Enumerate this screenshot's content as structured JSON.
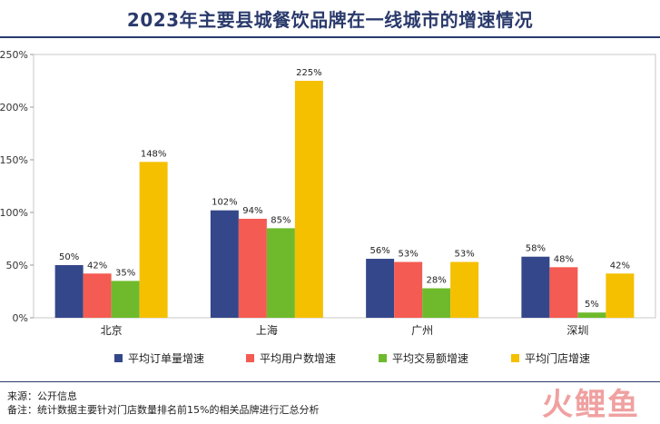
{
  "chart_data": {
    "type": "bar",
    "title": "2023年主要县城餐饮品牌在一线城市的增速情况",
    "categories": [
      "北京",
      "上海",
      "广州",
      "深圳"
    ],
    "series": [
      {
        "name": "平均订单量增速",
        "color": "#34478a",
        "values": [
          50,
          102,
          56,
          58
        ],
        "labels": [
          "50%",
          "102%",
          "56%",
          "58%"
        ]
      },
      {
        "name": "平均用户数增速",
        "color": "#f45b52",
        "values": [
          42,
          94,
          53,
          48
        ],
        "labels": [
          "42%",
          "94%",
          "53%",
          "48%"
        ]
      },
      {
        "name": "平均交易额增速",
        "color": "#6fba2c",
        "values": [
          35,
          85,
          28,
          5
        ],
        "labels": [
          "35%",
          "85%",
          "28%",
          "5%"
        ]
      },
      {
        "name": "平均门店增速",
        "color": "#f5c000",
        "values": [
          148,
          225,
          53,
          42
        ],
        "labels": [
          "148%",
          "225%",
          "53%",
          "42%"
        ]
      }
    ],
    "yticks": [
      "0%",
      "50%",
      "100%",
      "150%",
      "200%",
      "250%"
    ],
    "ylim": [
      0,
      250
    ],
    "grid": false,
    "legend": "bottom"
  },
  "footer": {
    "source": "来源：公开信息",
    "note": "备注：统计数据主要针对门店数量排名前15%的相关品牌进行汇总分析"
  },
  "watermark": "火鲤鱼"
}
